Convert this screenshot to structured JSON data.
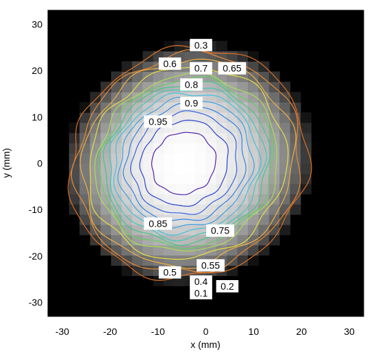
{
  "chart_data": {
    "type": "heatmap",
    "title": "",
    "xlabel": "x (mm)",
    "ylabel": "y (mm)",
    "xlim": [
      -33,
      33
    ],
    "ylim": [
      -33,
      33
    ],
    "xticks": [
      -30,
      -20,
      -10,
      0,
      10,
      20,
      30
    ],
    "yticks": [
      -30,
      -20,
      -10,
      0,
      10,
      20,
      30
    ],
    "tick_labels_x": [
      "-30",
      "-20",
      "-10",
      "0",
      "10",
      "20",
      "30"
    ],
    "tick_labels_y": [
      "-30",
      "-20",
      "-10",
      "0",
      "10",
      "20",
      "30"
    ],
    "colormap": "grayscale",
    "background_color": "#000000",
    "intensity_peak": {
      "x": -5,
      "y": 0
    },
    "grid": false,
    "contour_levels": [
      {
        "level": 0.1,
        "label": "0.1",
        "color": "#e07020"
      },
      {
        "level": 0.2,
        "label": "0.2",
        "color": "#f08a30"
      },
      {
        "level": 0.3,
        "label": "0.3",
        "color": "#f4b040"
      },
      {
        "level": 0.4,
        "label": "0.4",
        "color": "#e8e040"
      },
      {
        "level": 0.5,
        "label": "0.5",
        "color": "#a8e050"
      },
      {
        "level": 0.55,
        "label": "0.55",
        "color": "#60d060"
      },
      {
        "level": 0.6,
        "label": "0.6",
        "color": "#40c888"
      },
      {
        "level": 0.65,
        "label": "0.65",
        "color": "#40c8b8"
      },
      {
        "level": 0.7,
        "label": "0.7",
        "color": "#40c0e0"
      },
      {
        "level": 0.75,
        "label": "0.75",
        "color": "#3aa0e8"
      },
      {
        "level": 0.8,
        "label": "0.8",
        "color": "#3080e8"
      },
      {
        "level": 0.85,
        "label": "0.85",
        "color": "#3060e0"
      },
      {
        "level": 0.9,
        "label": "0.9",
        "color": "#2840d0"
      },
      {
        "level": 0.95,
        "label": "0.95",
        "color": "#5020b0"
      }
    ],
    "contour_label_positions": [
      {
        "label": "0.3",
        "x": -1,
        "y": 25.5
      },
      {
        "label": "0.6",
        "x": -7.5,
        "y": 21.5
      },
      {
        "label": "0.7",
        "x": -1,
        "y": 20.5
      },
      {
        "label": "0.65",
        "x": 5.5,
        "y": 20.5
      },
      {
        "label": "0.8",
        "x": -3,
        "y": 17
      },
      {
        "label": "0.9",
        "x": -3,
        "y": 13
      },
      {
        "label": "0.95",
        "x": -10,
        "y": 9
      },
      {
        "label": "0.85",
        "x": -10,
        "y": -13
      },
      {
        "label": "0.75",
        "x": 3,
        "y": -14.5
      },
      {
        "label": "0.55",
        "x": 1,
        "y": -22
      },
      {
        "label": "0.5",
        "x": -7.5,
        "y": -23.5
      },
      {
        "label": "0.4",
        "x": -1,
        "y": -25.5
      },
      {
        "label": "0.2",
        "x": 4.5,
        "y": -26.5
      },
      {
        "label": "0.1",
        "x": -1,
        "y": -28
      }
    ]
  }
}
